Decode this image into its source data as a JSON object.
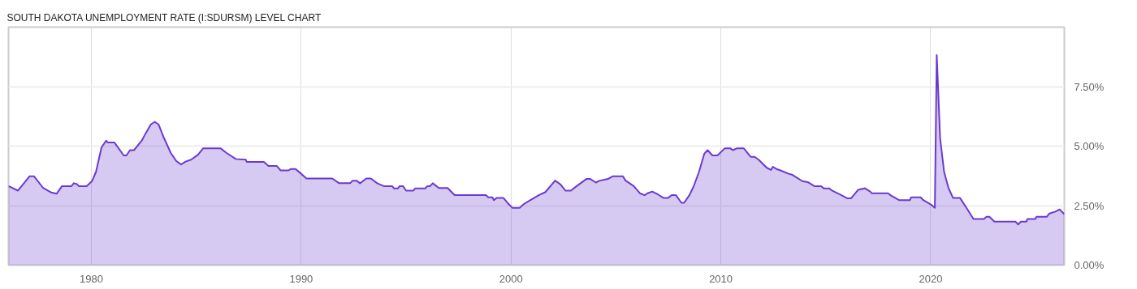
{
  "chart_data": {
    "type": "area",
    "title": "SOUTH DAKOTA UNEMPLOYMENT RATE (I:SDURSM) LEVEL CHART",
    "x": [
      1976.05,
      1976.5,
      1977.05,
      1977.27,
      1977.7,
      1978.09,
      1978.34,
      1978.6,
      1979.05,
      1979.16,
      1979.3,
      1979.4,
      1979.77,
      1980.03,
      1980.22,
      1980.48,
      1980.7,
      1980.78,
      1981.1,
      1981.54,
      1981.67,
      1981.84,
      1982.03,
      1982.4,
      1982.55,
      1982.83,
      1983.02,
      1983.2,
      1983.46,
      1983.78,
      1984.04,
      1984.27,
      1984.49,
      1984.75,
      1985.08,
      1985.33,
      1986.15,
      1986.43,
      1986.88,
      1987.36,
      1987.4,
      1988.22,
      1988.44,
      1988.83,
      1989.02,
      1989.4,
      1989.51,
      1989.73,
      1989.93,
      1990.25,
      1991.48,
      1991.81,
      1992.33,
      1992.45,
      1992.64,
      1992.8,
      1993.1,
      1993.32,
      1993.62,
      1993.94,
      1994.33,
      1994.43,
      1994.6,
      1994.69,
      1994.85,
      1995.0,
      1995.34,
      1995.43,
      1995.91,
      1996.01,
      1996.14,
      1996.27,
      1996.56,
      1996.98,
      1997.31,
      1998.8,
      1998.92,
      1999.11,
      1999.18,
      1999.31,
      1999.64,
      1999.83,
      2000.06,
      2000.41,
      2000.6,
      2000.86,
      2001.32,
      2001.64,
      2002.1,
      2002.36,
      2002.59,
      2002.85,
      2003.13,
      2003.59,
      2003.78,
      2004.04,
      2004.23,
      2004.62,
      2004.84,
      2005.33,
      2005.46,
      2005.85,
      2006.14,
      2006.37,
      2006.5,
      2006.73,
      2007.02,
      2007.27,
      2007.48,
      2007.66,
      2007.86,
      2008.12,
      2008.25,
      2008.5,
      2008.7,
      2008.96,
      2009.21,
      2009.37,
      2009.6,
      2009.84,
      2010.19,
      2010.45,
      2010.57,
      2010.77,
      2011.09,
      2011.42,
      2011.61,
      2011.8,
      2012.19,
      2012.39,
      2012.48,
      2012.65,
      2012.84,
      2013.23,
      2013.42,
      2013.88,
      2014.14,
      2014.46,
      2014.78,
      2014.91,
      2015.17,
      2015.3,
      2015.69,
      2016.02,
      2016.21,
      2016.54,
      2016.87,
      2017.12,
      2017.19,
      2017.97,
      2018.1,
      2018.49,
      2019.01,
      2019.07,
      2019.52,
      2019.65,
      2020.04,
      2020.2,
      2020.29,
      2020.45,
      2020.64,
      2020.85,
      2021.07,
      2021.4,
      2021.72,
      2022.04,
      2022.54,
      2022.66,
      2022.8,
      2023.04,
      2024.04,
      2024.17,
      2024.3,
      2024.56,
      2024.62,
      2024.99,
      2025.04,
      2025.53,
      2025.66,
      2025.92,
      2026.15,
      2026.37
    ],
    "series": [
      {
        "color": "#6a3ad0",
        "values": [
          3.32,
          3.13,
          3.73,
          3.73,
          3.24,
          3.05,
          3.0,
          3.32,
          3.32,
          3.44,
          3.41,
          3.32,
          3.32,
          3.53,
          3.92,
          4.94,
          5.23,
          5.15,
          5.15,
          4.61,
          4.61,
          4.83,
          4.83,
          5.23,
          5.48,
          5.91,
          6.02,
          5.91,
          5.34,
          4.72,
          4.38,
          4.23,
          4.35,
          4.43,
          4.64,
          4.91,
          4.91,
          4.72,
          4.46,
          4.43,
          4.34,
          4.34,
          4.17,
          4.17,
          3.98,
          3.98,
          4.04,
          4.04,
          3.89,
          3.64,
          3.64,
          3.44,
          3.44,
          3.55,
          3.55,
          3.44,
          3.64,
          3.64,
          3.44,
          3.32,
          3.32,
          3.22,
          3.22,
          3.32,
          3.32,
          3.13,
          3.13,
          3.22,
          3.22,
          3.32,
          3.32,
          3.44,
          3.24,
          3.24,
          2.94,
          2.94,
          2.85,
          2.85,
          2.73,
          2.82,
          2.82,
          2.62,
          2.41,
          2.41,
          2.56,
          2.7,
          2.94,
          3.07,
          3.55,
          3.39,
          3.13,
          3.13,
          3.32,
          3.62,
          3.62,
          3.47,
          3.55,
          3.62,
          3.73,
          3.73,
          3.55,
          3.32,
          3.02,
          2.94,
          3.02,
          3.09,
          2.96,
          2.82,
          2.82,
          2.94,
          2.94,
          2.62,
          2.62,
          2.94,
          3.3,
          3.92,
          4.68,
          4.83,
          4.61,
          4.61,
          4.91,
          4.91,
          4.83,
          4.91,
          4.91,
          4.55,
          4.55,
          4.43,
          4.09,
          4.0,
          4.13,
          4.04,
          3.98,
          3.84,
          3.79,
          3.53,
          3.49,
          3.32,
          3.32,
          3.22,
          3.22,
          3.13,
          2.96,
          2.81,
          2.81,
          3.16,
          3.23,
          3.09,
          3.02,
          3.02,
          2.93,
          2.73,
          2.73,
          2.85,
          2.85,
          2.73,
          2.53,
          2.41,
          8.83,
          5.34,
          3.92,
          3.24,
          2.82,
          2.82,
          2.39,
          1.94,
          1.94,
          2.03,
          2.03,
          1.83,
          1.83,
          1.71,
          1.83,
          1.83,
          1.94,
          1.94,
          2.03,
          2.03,
          2.17,
          2.24,
          2.34,
          2.14
        ]
      }
    ],
    "xlim": [
      1976.05,
      2026.37
    ],
    "ylim": [
      0,
      10
    ],
    "xticks": [
      1980,
      1990,
      2000,
      2010,
      2020
    ],
    "yticks": [
      {
        "value": 0,
        "label": "0.00%"
      },
      {
        "value": 2.5,
        "label": "2.50%"
      },
      {
        "value": 5,
        "label": "5.00%"
      },
      {
        "value": 7.5,
        "label": "7.50%"
      }
    ],
    "grid": true
  }
}
